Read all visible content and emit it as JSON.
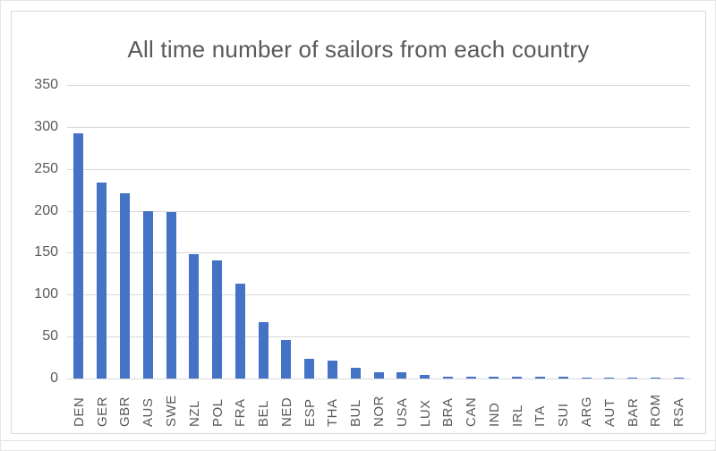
{
  "chart_data": {
    "type": "bar",
    "title": "All time number of sailors from each country",
    "categories": [
      "DEN",
      "GER",
      "GBR",
      "AUS",
      "SWE",
      "NZL",
      "POL",
      "FRA",
      "BEL",
      "NED",
      "ESP",
      "THA",
      "BUL",
      "NOR",
      "USA",
      "LUX",
      "BRA",
      "CAN",
      "IND",
      "IRL",
      "ITA",
      "SUI",
      "ARG",
      "AUT",
      "BAR",
      "ROM",
      "RSA"
    ],
    "values": [
      292,
      234,
      221,
      200,
      199,
      148,
      141,
      113,
      67,
      46,
      24,
      21,
      13,
      8,
      7,
      4,
      2,
      2,
      2,
      2,
      2,
      2,
      1,
      1,
      1,
      1,
      1
    ],
    "xlabel": "",
    "ylabel": "",
    "ylim": [
      0,
      350
    ],
    "yticks": [
      0,
      50,
      100,
      150,
      200,
      250,
      300,
      350
    ],
    "grid": true,
    "legend": "none",
    "colors": {
      "bar": "#4472c4",
      "gridline": "#d9d9d9",
      "text": "#595959",
      "frame_border": "#d9d9d9"
    }
  }
}
